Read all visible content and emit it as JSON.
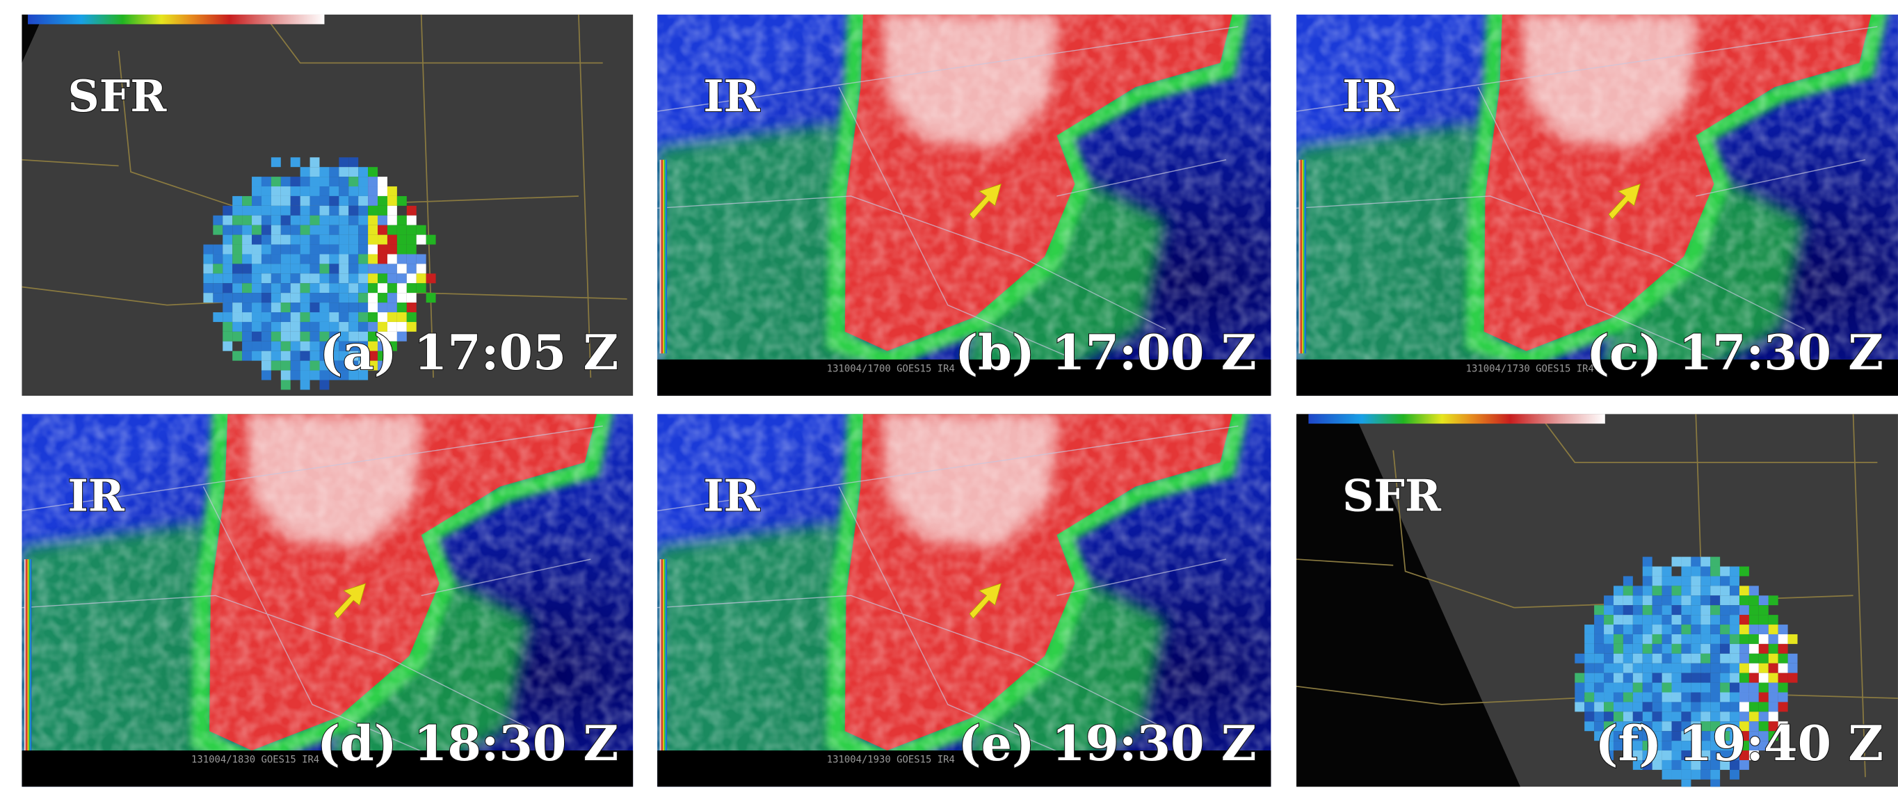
{
  "panels": [
    {
      "kind": "sfr",
      "label": "SFR",
      "caption": "(a) 17:05 Z"
    },
    {
      "kind": "ir",
      "label": "IR",
      "caption": "(b) 17:00 Z",
      "footer": "131004/1700 GOES15 IR4"
    },
    {
      "kind": "ir",
      "label": "IR",
      "caption": "(c) 17:30 Z",
      "footer": "131004/1730 GOES15 IR4"
    },
    {
      "kind": "ir",
      "label": "IR",
      "caption": "(d) 18:30 Z",
      "footer": "131004/1830 GOES15 IR4"
    },
    {
      "kind": "ir",
      "label": "IR",
      "caption": "(e) 19:30 Z",
      "footer": "131004/1930 GOES15 IR4"
    },
    {
      "kind": "sfr",
      "label": "SFR",
      "caption": "(f) 19:40 Z"
    }
  ]
}
